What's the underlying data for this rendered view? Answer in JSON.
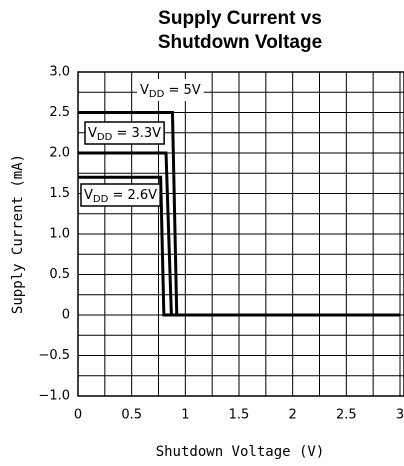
{
  "chart_data": {
    "type": "line",
    "title": [
      "Supply Current vs",
      "Shutdown Voltage"
    ],
    "xlabel": "Shutdown Voltage (V)",
    "ylabel": "Supply Current (mA)",
    "xlim": [
      0,
      3
    ],
    "ylim": [
      -1,
      3
    ],
    "xticks": [
      0,
      0.5,
      1,
      1.5,
      2,
      2.5,
      3
    ],
    "yticks": [
      {
        "value": 3,
        "label": "3.0"
      },
      {
        "value": 2.5,
        "label": "2.5"
      },
      {
        "value": 2,
        "label": "2.0"
      },
      {
        "value": 1.5,
        "label": "1.5"
      },
      {
        "value": 1,
        "label": "1.0"
      },
      {
        "value": 0.5,
        "label": "0.5"
      },
      0,
      {
        "value": -0.5,
        "label": "−0.5"
      },
      {
        "value": -1,
        "label": "−1.0"
      }
    ],
    "grid": true,
    "series": [
      {
        "name": "VDD = 5V",
        "color": "#000000",
        "x": [
          0,
          0.88,
          0.92,
          3
        ],
        "values": [
          2.5,
          2.5,
          0,
          0
        ]
      },
      {
        "name": "VDD = 3.3V",
        "color": "#000000",
        "x": [
          0,
          0.82,
          0.87,
          3
        ],
        "values": [
          2.0,
          2.0,
          0,
          0
        ]
      },
      {
        "name": "VDD = 2.6V",
        "color": "#000000",
        "x": [
          0,
          0.77,
          0.8,
          3
        ],
        "values": [
          1.7,
          1.7,
          0,
          0
        ]
      }
    ]
  }
}
